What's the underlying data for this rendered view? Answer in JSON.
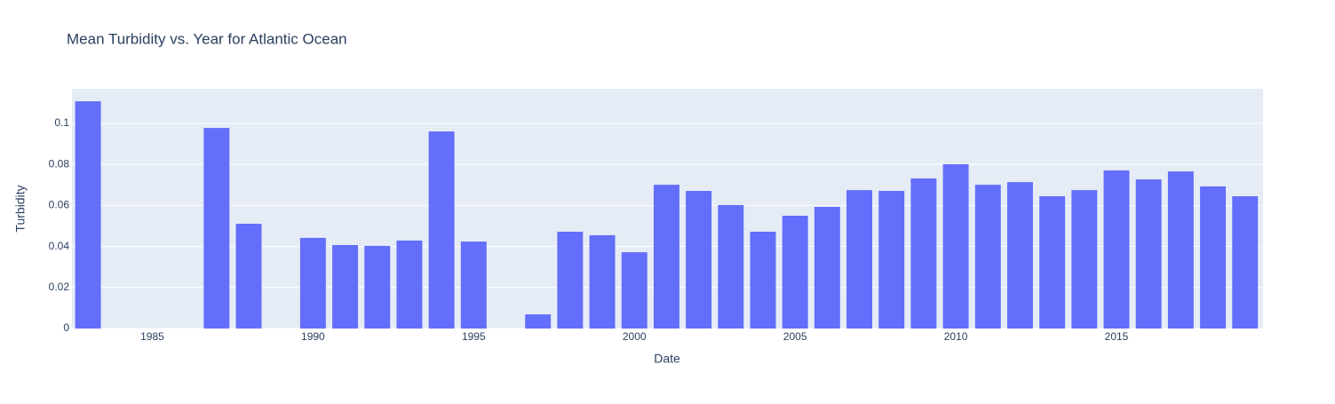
{
  "chart_data": {
    "type": "bar",
    "title": "Mean Turbidity vs. Year for Atlantic Ocean",
    "x_label": "Date",
    "y_label": "Turbidity",
    "x": [
      1983,
      1987,
      1988,
      1990,
      1991,
      1992,
      1993,
      1994,
      1995,
      1997,
      1998,
      1999,
      2000,
      2001,
      2002,
      2003,
      2004,
      2005,
      2006,
      2007,
      2008,
      2009,
      2010,
      2011,
      2012,
      2013,
      2014,
      2015,
      2016,
      2017,
      2018,
      2019
    ],
    "values": [
      0.1108,
      0.0978,
      0.0511,
      0.0442,
      0.0407,
      0.0403,
      0.0429,
      0.0961,
      0.0424,
      0.0069,
      0.0472,
      0.0455,
      0.0372,
      0.0701,
      0.0671,
      0.0602,
      0.0472,
      0.055,
      0.0593,
      0.0675,
      0.0671,
      0.0732,
      0.0801,
      0.0701,
      0.0714,
      0.0645,
      0.0675,
      0.0771,
      0.0727,
      0.0766,
      0.0693,
      0.0645
    ],
    "color": "#636efa",
    "xlim": [
      1982.5,
      2019.56
    ],
    "xticks": [
      1985,
      1990,
      1995,
      2000,
      2005,
      2010,
      2015
    ],
    "ylim": [
      0,
      0.1169
    ],
    "yticks": [
      0,
      0.02,
      0.04,
      0.06,
      0.08,
      0.1
    ],
    "grid": true
  }
}
